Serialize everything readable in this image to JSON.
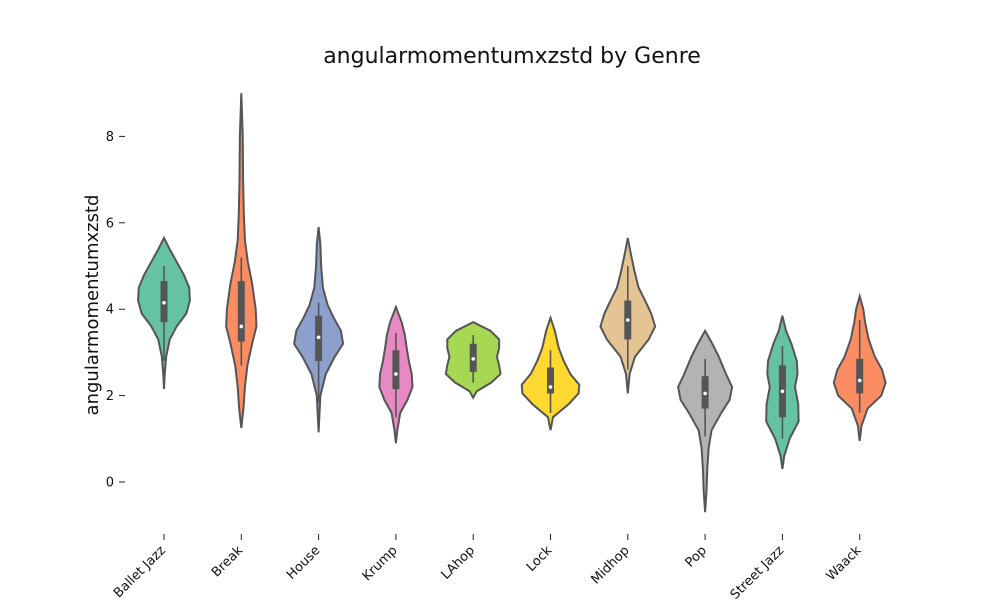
{
  "chart_data": {
    "type": "violin",
    "title": "angularmomentumxzstd by Genre",
    "xlabel": "",
    "ylabel": "angularmomentumxzstd",
    "ylim": [
      -1.2,
      9.0
    ],
    "yticks": [
      0,
      2,
      4,
      6,
      8
    ],
    "ytick_labels": [
      "0",
      "2",
      "4",
      "6",
      "8"
    ],
    "grid": false,
    "legend": "none",
    "categories": [
      "Ballet Jazz",
      "Break",
      "House",
      "Krump",
      "LAhop",
      "Lock",
      "Midhop",
      "Pop",
      "Street Jazz",
      "Waack"
    ],
    "colors": [
      "#66c2a5",
      "#fc8d62",
      "#8da0cb",
      "#e78ac3",
      "#a6d854",
      "#ffd92f",
      "#e5c494",
      "#b3b3b3",
      "#66c2a5",
      "#fc8d62"
    ],
    "series": [
      {
        "stats": {
          "min": 2.8,
          "q1": 3.7,
          "median": 4.15,
          "q3": 4.65,
          "max": 5.0
        },
        "profile": [
          [
            2.15,
            0.0
          ],
          [
            2.5,
            0.02
          ],
          [
            2.9,
            0.06
          ],
          [
            3.3,
            0.16
          ],
          [
            3.6,
            0.35
          ],
          [
            3.9,
            0.62
          ],
          [
            4.2,
            0.72
          ],
          [
            4.5,
            0.7
          ],
          [
            4.8,
            0.55
          ],
          [
            5.1,
            0.35
          ],
          [
            5.4,
            0.15
          ],
          [
            5.65,
            0.0
          ]
        ]
      },
      {
        "stats": {
          "min": 2.7,
          "q1": 3.25,
          "median": 3.6,
          "q3": 4.65,
          "max": 5.2
        },
        "profile": [
          [
            1.25,
            0.0
          ],
          [
            1.7,
            0.06
          ],
          [
            2.2,
            0.1
          ],
          [
            2.7,
            0.17
          ],
          [
            3.2,
            0.3
          ],
          [
            3.6,
            0.42
          ],
          [
            4.0,
            0.4
          ],
          [
            4.6,
            0.3
          ],
          [
            5.1,
            0.18
          ],
          [
            5.6,
            0.1
          ],
          [
            6.2,
            0.07
          ],
          [
            7.0,
            0.05
          ],
          [
            8.0,
            0.04
          ],
          [
            9.0,
            0.0
          ]
        ]
      },
      {
        "stats": {
          "min": 1.85,
          "q1": 2.8,
          "median": 3.35,
          "q3": 3.85,
          "max": 4.15
        },
        "profile": [
          [
            1.15,
            0.0
          ],
          [
            1.5,
            0.02
          ],
          [
            2.0,
            0.05
          ],
          [
            2.5,
            0.2
          ],
          [
            2.9,
            0.45
          ],
          [
            3.2,
            0.68
          ],
          [
            3.5,
            0.62
          ],
          [
            3.8,
            0.42
          ],
          [
            4.1,
            0.25
          ],
          [
            4.5,
            0.12
          ],
          [
            5.0,
            0.07
          ],
          [
            5.5,
            0.05
          ],
          [
            5.9,
            0.0
          ]
        ]
      },
      {
        "stats": {
          "min": 1.5,
          "q1": 2.15,
          "median": 2.5,
          "q3": 3.05,
          "max": 3.45
        },
        "profile": [
          [
            0.9,
            0.0
          ],
          [
            1.2,
            0.04
          ],
          [
            1.6,
            0.12
          ],
          [
            1.9,
            0.32
          ],
          [
            2.2,
            0.46
          ],
          [
            2.5,
            0.44
          ],
          [
            2.8,
            0.36
          ],
          [
            3.1,
            0.3
          ],
          [
            3.4,
            0.25
          ],
          [
            3.7,
            0.16
          ],
          [
            4.05,
            0.0
          ]
        ]
      },
      {
        "stats": {
          "min": 2.3,
          "q1": 2.55,
          "median": 2.85,
          "q3": 3.2,
          "max": 3.4
        },
        "profile": [
          [
            1.95,
            0.0
          ],
          [
            2.1,
            0.1
          ],
          [
            2.3,
            0.5
          ],
          [
            2.5,
            0.76
          ],
          [
            2.7,
            0.72
          ],
          [
            2.9,
            0.66
          ],
          [
            3.1,
            0.72
          ],
          [
            3.3,
            0.72
          ],
          [
            3.5,
            0.48
          ],
          [
            3.7,
            0.0
          ]
        ]
      },
      {
        "stats": {
          "min": 1.6,
          "q1": 2.05,
          "median": 2.2,
          "q3": 2.65,
          "max": 3.05
        },
        "profile": [
          [
            1.2,
            0.0
          ],
          [
            1.5,
            0.07
          ],
          [
            1.8,
            0.5
          ],
          [
            2.05,
            0.78
          ],
          [
            2.25,
            0.8
          ],
          [
            2.5,
            0.55
          ],
          [
            2.8,
            0.37
          ],
          [
            3.1,
            0.23
          ],
          [
            3.5,
            0.12
          ],
          [
            3.8,
            0.0
          ]
        ]
      },
      {
        "stats": {
          "min": 2.6,
          "q1": 3.3,
          "median": 3.75,
          "q3": 4.2,
          "max": 5.0
        },
        "profile": [
          [
            2.05,
            0.0
          ],
          [
            2.5,
            0.05
          ],
          [
            2.9,
            0.2
          ],
          [
            3.3,
            0.58
          ],
          [
            3.6,
            0.76
          ],
          [
            3.9,
            0.65
          ],
          [
            4.2,
            0.48
          ],
          [
            4.5,
            0.3
          ],
          [
            4.9,
            0.18
          ],
          [
            5.3,
            0.08
          ],
          [
            5.65,
            0.0
          ]
        ]
      },
      {
        "stats": {
          "min": 1.05,
          "q1": 1.7,
          "median": 2.05,
          "q3": 2.45,
          "max": 2.85
        },
        "profile": [
          [
            -0.7,
            0.0
          ],
          [
            -0.2,
            0.04
          ],
          [
            0.3,
            0.06
          ],
          [
            0.8,
            0.1
          ],
          [
            1.2,
            0.18
          ],
          [
            1.6,
            0.45
          ],
          [
            1.9,
            0.68
          ],
          [
            2.2,
            0.75
          ],
          [
            2.5,
            0.58
          ],
          [
            2.9,
            0.38
          ],
          [
            3.2,
            0.2
          ],
          [
            3.5,
            0.0
          ]
        ]
      },
      {
        "stats": {
          "min": 1.0,
          "q1": 1.5,
          "median": 2.1,
          "q3": 2.7,
          "max": 3.15
        },
        "profile": [
          [
            0.3,
            0.0
          ],
          [
            0.6,
            0.05
          ],
          [
            1.0,
            0.2
          ],
          [
            1.4,
            0.45
          ],
          [
            1.8,
            0.44
          ],
          [
            2.2,
            0.35
          ],
          [
            2.5,
            0.42
          ],
          [
            2.8,
            0.4
          ],
          [
            3.2,
            0.25
          ],
          [
            3.5,
            0.1
          ],
          [
            3.85,
            0.0
          ]
        ]
      },
      {
        "stats": {
          "min": 1.6,
          "q1": 2.05,
          "median": 2.35,
          "q3": 2.85,
          "max": 3.75
        },
        "profile": [
          [
            0.95,
            0.0
          ],
          [
            1.3,
            0.05
          ],
          [
            1.7,
            0.22
          ],
          [
            2.0,
            0.6
          ],
          [
            2.3,
            0.72
          ],
          [
            2.6,
            0.62
          ],
          [
            2.9,
            0.42
          ],
          [
            3.3,
            0.25
          ],
          [
            3.7,
            0.15
          ],
          [
            4.0,
            0.1
          ],
          [
            4.3,
            0.0
          ]
        ]
      }
    ]
  }
}
